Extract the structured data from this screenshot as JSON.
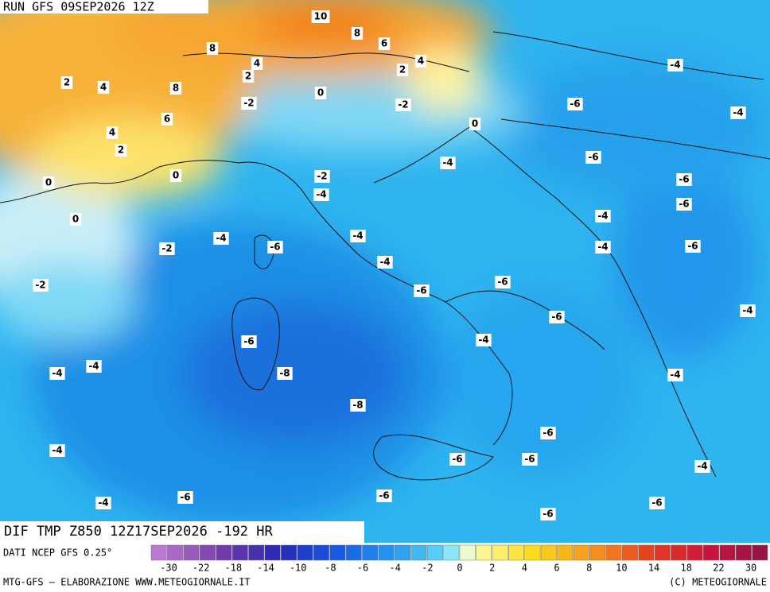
{
  "header": {
    "title": "RUN GFS 09SEP2026 12Z"
  },
  "map": {
    "caption": "DIF TMP Z850 12Z17SEP2026 -192 HR",
    "source": "DATI NCEP GFS 0.25°",
    "contour_labels": [
      10,
      8,
      6,
      8,
      4,
      4,
      2,
      4,
      2,
      2,
      8,
      0,
      -2,
      -2,
      6,
      4,
      0,
      2,
      -4,
      -6,
      -4,
      -6,
      -4,
      -2,
      0,
      0,
      -4,
      -6,
      -6,
      0,
      -4,
      -4,
      -4,
      -6,
      -2,
      -4,
      -6,
      -4,
      -2,
      -6,
      -6,
      -4,
      -6,
      -6,
      -4,
      -4,
      -4,
      -8,
      -4,
      -8,
      -6,
      -4,
      -6,
      -6,
      -4,
      -4,
      -6,
      -6,
      -6,
      -6
    ]
  },
  "legend": {
    "labels": [
      -30,
      -22,
      -18,
      -14,
      -10,
      -8,
      -6,
      -4,
      -2,
      0,
      2,
      4,
      6,
      8,
      10,
      14,
      18,
      22,
      30
    ]
  },
  "footer": {
    "left": "MTG-GFS – ELABORAZIONE WWW.METEOGIORNALE.IT",
    "right": "(C) METEOGIORNALE"
  }
}
